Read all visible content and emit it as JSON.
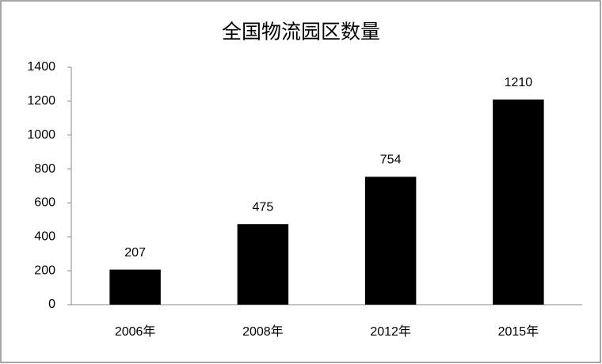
{
  "chart_data": {
    "type": "bar",
    "title": "全国物流园区数量",
    "categories": [
      "2006年",
      "2008年",
      "2012年",
      "2015年"
    ],
    "values": [
      207,
      475,
      754,
      1210
    ],
    "color": "#000000",
    "ylim": [
      0,
      1400
    ],
    "yticks": [
      0,
      200,
      400,
      600,
      800,
      1000,
      1200,
      1400
    ],
    "grid": false,
    "data_labels": true
  }
}
